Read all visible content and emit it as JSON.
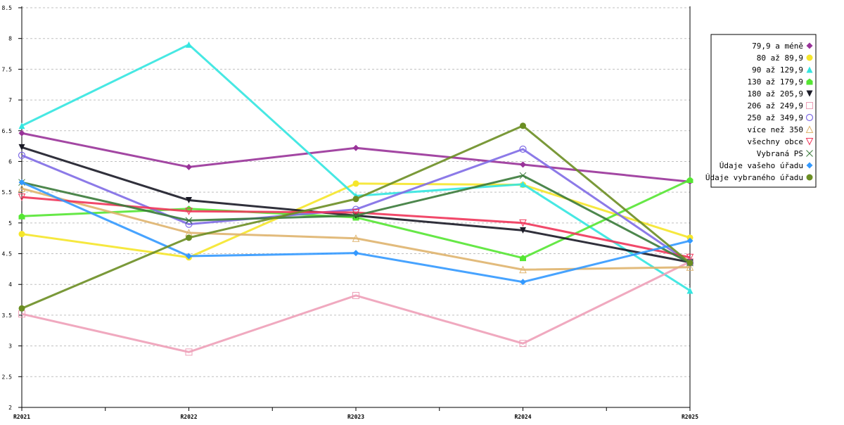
{
  "chart_data": {
    "type": "line",
    "title": "",
    "xlabel": "",
    "ylabel": "",
    "ylim": [
      2,
      8.5
    ],
    "yticks": [
      "2",
      "2.5",
      "3",
      "3.5",
      "4",
      "4.5",
      "5",
      "5.5",
      "6",
      "6.5",
      "7",
      "7.5",
      "8",
      "8.5"
    ],
    "categories": [
      "R2021",
      "R2022",
      "R2023",
      "R2024",
      "R2025"
    ],
    "grid": true,
    "legend_position": "right",
    "series": [
      {
        "name": "79,9 a méně",
        "color": "#993399",
        "marker": "diamond",
        "values": [
          6.46,
          5.91,
          6.22,
          5.95,
          5.67
        ]
      },
      {
        "name": "80 až 89,9",
        "color": "#f5e62a",
        "marker": "circle-filled",
        "values": [
          4.82,
          4.44,
          5.64,
          5.62,
          4.76
        ]
      },
      {
        "name": "90 až 129,9",
        "color": "#33e6e0",
        "marker": "triangle-up",
        "values": [
          6.58,
          7.9,
          5.44,
          5.63,
          3.9
        ]
      },
      {
        "name": "130 až 179,9",
        "color": "#55e633",
        "marker": "pentagon",
        "values": [
          5.11,
          5.23,
          5.09,
          4.43,
          5.7
        ]
      },
      {
        "name": "180 až 205,9",
        "color": "#1a1a26",
        "marker": "triangle-down",
        "values": [
          6.23,
          5.37,
          5.12,
          4.88,
          4.36
        ]
      },
      {
        "name": "206 až 249,9",
        "color": "#eea0b8",
        "marker": "square-open",
        "values": [
          3.52,
          2.9,
          3.82,
          3.04,
          4.37
        ]
      },
      {
        "name": "250 až 349,9",
        "color": "#7f6be6",
        "marker": "circle-open",
        "values": [
          6.1,
          4.98,
          5.22,
          6.2,
          4.35
        ]
      },
      {
        "name": "více než 350",
        "color": "#dfb46e",
        "marker": "triangle-up-open",
        "values": [
          5.56,
          4.84,
          4.75,
          4.24,
          4.28
        ]
      },
      {
        "name": "všechny obce",
        "color": "#f0355a",
        "marker": "triangle-down-open",
        "values": [
          5.42,
          5.19,
          5.17,
          5.0,
          4.44
        ]
      },
      {
        "name": "Vybraná PS",
        "color": "#3a7a3a",
        "marker": "x",
        "values": [
          5.66,
          5.04,
          5.12,
          5.77,
          4.35
        ]
      },
      {
        "name": "Údaje vašeho úřadu",
        "color": "#3399ff",
        "marker": "diamond",
        "values": [
          5.66,
          4.46,
          4.51,
          4.04,
          4.71
        ]
      },
      {
        "name": "Údaje vybraného úřadu",
        "color": "#6b8e23",
        "marker": "circle-filled",
        "values": [
          3.61,
          4.76,
          5.39,
          6.58,
          4.35
        ]
      }
    ]
  }
}
